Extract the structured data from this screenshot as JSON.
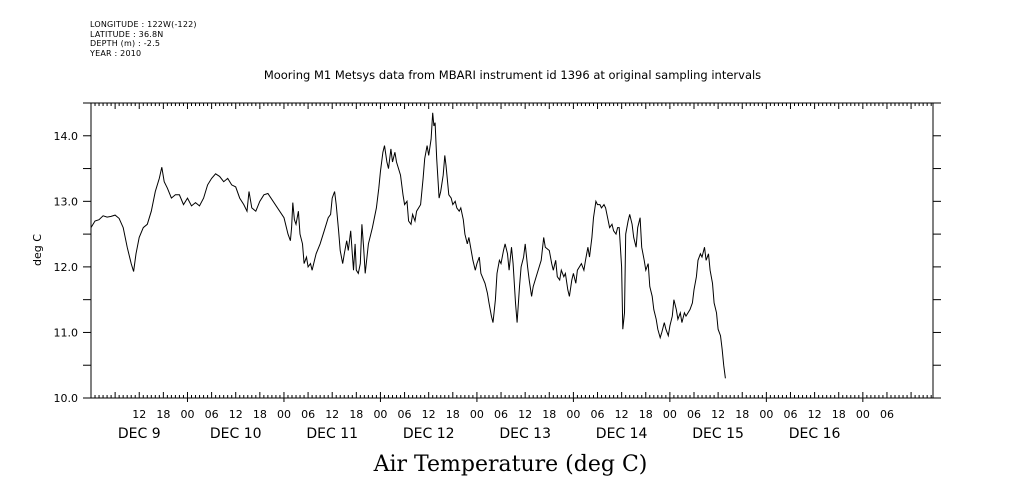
{
  "header": {
    "longitude": "LONGITUDE : 122W(-122)",
    "latitude": "LATITUDE : 36.8N",
    "depth": "DEPTH (m) : -2.5",
    "year": "YEAR : 2010"
  },
  "chart_data": {
    "type": "line",
    "title": "Mooring M1 Metsys data from MBARI instrument id 1396 at original sampling intervals",
    "bottom_title": "Air Temperature (deg C)",
    "ylabel": "deg C",
    "xlabel": "",
    "ylim": [
      10.0,
      14.5
    ],
    "y_ticks": [
      "10.0",
      "11.0",
      "12.0",
      "13.0",
      "14.0"
    ],
    "x_range_hours": [
      0,
      210
    ],
    "x_hour_labels": [
      {
        "h": 12,
        "label": "12"
      },
      {
        "h": 18,
        "label": "18"
      },
      {
        "h": 24,
        "label": "00"
      },
      {
        "h": 30,
        "label": "06"
      },
      {
        "h": 36,
        "label": "12"
      },
      {
        "h": 42,
        "label": "18"
      },
      {
        "h": 48,
        "label": "00"
      },
      {
        "h": 54,
        "label": "06"
      },
      {
        "h": 60,
        "label": "12"
      },
      {
        "h": 66,
        "label": "18"
      },
      {
        "h": 72,
        "label": "00"
      },
      {
        "h": 78,
        "label": "06"
      },
      {
        "h": 84,
        "label": "12"
      },
      {
        "h": 90,
        "label": "18"
      },
      {
        "h": 96,
        "label": "00"
      },
      {
        "h": 102,
        "label": "06"
      },
      {
        "h": 108,
        "label": "12"
      },
      {
        "h": 114,
        "label": "18"
      },
      {
        "h": 120,
        "label": "00"
      },
      {
        "h": 126,
        "label": "06"
      },
      {
        "h": 132,
        "label": "12"
      },
      {
        "h": 138,
        "label": "18"
      },
      {
        "h": 144,
        "label": "00"
      },
      {
        "h": 150,
        "label": "06"
      },
      {
        "h": 156,
        "label": "12"
      },
      {
        "h": 162,
        "label": "18"
      },
      {
        "h": 168,
        "label": "00"
      },
      {
        "h": 174,
        "label": "06"
      },
      {
        "h": 180,
        "label": "12"
      },
      {
        "h": 186,
        "label": "18"
      },
      {
        "h": 192,
        "label": "00"
      },
      {
        "h": 198,
        "label": "06"
      }
    ],
    "x_day_labels": [
      {
        "h": 12,
        "label": "DEC  9"
      },
      {
        "h": 36,
        "label": "DEC 10"
      },
      {
        "h": 60,
        "label": "DEC 11"
      },
      {
        "h": 84,
        "label": "DEC 12"
      },
      {
        "h": 108,
        "label": "DEC 13"
      },
      {
        "h": 132,
        "label": "DEC 14"
      },
      {
        "h": 156,
        "label": "DEC 15"
      },
      {
        "h": 180,
        "label": "DEC 16"
      }
    ],
    "series": [
      {
        "points": [
          [
            0,
            12.6
          ],
          [
            1,
            12.7
          ],
          [
            2,
            12.72
          ],
          [
            3,
            12.78
          ],
          [
            4,
            12.76
          ],
          [
            5,
            12.77
          ],
          [
            6,
            12.79
          ],
          [
            7,
            12.74
          ],
          [
            8,
            12.6
          ],
          [
            9,
            12.3
          ],
          [
            10,
            12.05
          ],
          [
            10.6,
            11.93
          ],
          [
            11.2,
            12.2
          ],
          [
            12,
            12.45
          ],
          [
            13,
            12.6
          ],
          [
            14,
            12.65
          ],
          [
            15,
            12.85
          ],
          [
            16,
            13.15
          ],
          [
            17,
            13.35
          ],
          [
            17.6,
            13.52
          ],
          [
            18.2,
            13.3
          ],
          [
            19,
            13.2
          ],
          [
            20,
            13.05
          ],
          [
            21,
            13.1
          ],
          [
            22,
            13.1
          ],
          [
            23,
            12.95
          ],
          [
            24,
            13.05
          ],
          [
            25,
            12.93
          ],
          [
            26,
            12.98
          ],
          [
            27,
            12.93
          ],
          [
            28,
            13.05
          ],
          [
            29,
            13.25
          ],
          [
            30,
            13.35
          ],
          [
            31,
            13.42
          ],
          [
            32,
            13.38
          ],
          [
            33,
            13.3
          ],
          [
            34,
            13.35
          ],
          [
            35,
            13.25
          ],
          [
            36,
            13.22
          ],
          [
            37,
            13.05
          ],
          [
            38,
            12.95
          ],
          [
            38.8,
            12.85
          ],
          [
            39.3,
            13.15
          ],
          [
            40,
            12.9
          ],
          [
            41,
            12.85
          ],
          [
            42,
            13.0
          ],
          [
            43,
            13.1
          ],
          [
            44,
            13.12
          ],
          [
            48,
            12.75
          ],
          [
            49,
            12.5
          ],
          [
            49.6,
            12.4
          ],
          [
            49.9,
            12.6
          ],
          [
            50.2,
            12.98
          ],
          [
            50.6,
            12.72
          ],
          [
            51,
            12.65
          ],
          [
            51.6,
            12.85
          ],
          [
            52,
            12.5
          ],
          [
            52.6,
            12.35
          ],
          [
            53,
            12.05
          ],
          [
            53.6,
            12.15
          ],
          [
            54,
            12.0
          ],
          [
            54.6,
            12.05
          ],
          [
            55,
            11.95
          ],
          [
            55.6,
            12.1
          ],
          [
            56,
            12.2
          ],
          [
            57,
            12.35
          ],
          [
            58,
            12.55
          ],
          [
            59,
            12.75
          ],
          [
            59.6,
            12.8
          ],
          [
            60,
            13.05
          ],
          [
            60.6,
            13.15
          ],
          [
            61,
            12.95
          ],
          [
            61.6,
            12.55
          ],
          [
            62,
            12.25
          ],
          [
            62.6,
            12.05
          ],
          [
            63,
            12.2
          ],
          [
            63.6,
            12.4
          ],
          [
            64,
            12.25
          ],
          [
            64.6,
            12.55
          ],
          [
            65,
            12.2
          ],
          [
            65.3,
            11.95
          ],
          [
            65.7,
            12.35
          ],
          [
            66,
            11.95
          ],
          [
            66.5,
            11.9
          ],
          [
            67,
            12.05
          ],
          [
            67.4,
            12.65
          ],
          [
            67.8,
            12.3
          ],
          [
            68.2,
            11.9
          ],
          [
            69,
            12.35
          ],
          [
            70,
            12.6
          ],
          [
            71,
            12.9
          ],
          [
            71.6,
            13.2
          ],
          [
            72,
            13.45
          ],
          [
            72.6,
            13.75
          ],
          [
            73,
            13.85
          ],
          [
            73.6,
            13.6
          ],
          [
            74,
            13.5
          ],
          [
            74.6,
            13.8
          ],
          [
            75,
            13.6
          ],
          [
            75.6,
            13.75
          ],
          [
            76,
            13.6
          ],
          [
            77,
            13.4
          ],
          [
            77.6,
            13.1
          ],
          [
            78,
            12.95
          ],
          [
            78.6,
            13.0
          ],
          [
            79,
            12.7
          ],
          [
            79.6,
            12.65
          ],
          [
            80,
            12.8
          ],
          [
            80.6,
            12.7
          ],
          [
            81,
            12.85
          ],
          [
            82,
            12.95
          ],
          [
            82.6,
            13.35
          ],
          [
            83,
            13.65
          ],
          [
            83.6,
            13.85
          ],
          [
            84,
            13.7
          ],
          [
            84.6,
            13.95
          ],
          [
            85,
            14.35
          ],
          [
            85.3,
            14.15
          ],
          [
            85.6,
            14.2
          ],
          [
            86,
            13.65
          ],
          [
            86.6,
            13.05
          ],
          [
            87,
            13.15
          ],
          [
            87.6,
            13.4
          ],
          [
            88,
            13.7
          ],
          [
            88.3,
            13.55
          ],
          [
            89,
            13.1
          ],
          [
            89.6,
            13.05
          ],
          [
            90,
            12.95
          ],
          [
            90.6,
            13.0
          ],
          [
            91,
            12.9
          ],
          [
            91.6,
            12.85
          ],
          [
            92,
            12.9
          ],
          [
            92.6,
            12.72
          ],
          [
            93,
            12.5
          ],
          [
            93.6,
            12.35
          ],
          [
            94,
            12.45
          ],
          [
            95,
            12.1
          ],
          [
            95.6,
            11.95
          ],
          [
            96,
            12.05
          ],
          [
            96.6,
            12.15
          ],
          [
            97,
            11.9
          ],
          [
            98,
            11.75
          ],
          [
            98.6,
            11.6
          ],
          [
            99,
            11.45
          ],
          [
            99.6,
            11.25
          ],
          [
            100,
            11.15
          ],
          [
            100.6,
            11.5
          ],
          [
            101,
            11.9
          ],
          [
            101.6,
            12.1
          ],
          [
            102,
            12.05
          ],
          [
            102.6,
            12.25
          ],
          [
            103,
            12.35
          ],
          [
            103.6,
            12.2
          ],
          [
            104,
            11.95
          ],
          [
            104.6,
            12.3
          ],
          [
            105,
            12.05
          ],
          [
            105.6,
            11.45
          ],
          [
            106,
            11.15
          ],
          [
            106.6,
            11.7
          ],
          [
            107,
            12.0
          ],
          [
            107.6,
            12.15
          ],
          [
            108,
            12.35
          ],
          [
            108.6,
            12.0
          ],
          [
            109,
            11.8
          ],
          [
            109.6,
            11.55
          ],
          [
            110,
            11.7
          ],
          [
            111,
            11.9
          ],
          [
            112,
            12.1
          ],
          [
            112.6,
            12.45
          ],
          [
            113,
            12.3
          ],
          [
            114,
            12.25
          ],
          [
            114.6,
            12.05
          ],
          [
            115,
            11.95
          ],
          [
            115.6,
            12.1
          ],
          [
            116,
            11.85
          ],
          [
            116.6,
            11.8
          ],
          [
            117,
            11.95
          ],
          [
            117.6,
            11.85
          ],
          [
            118,
            11.9
          ],
          [
            118.6,
            11.65
          ],
          [
            119,
            11.55
          ],
          [
            119.6,
            11.8
          ],
          [
            120,
            11.9
          ],
          [
            120.6,
            11.75
          ],
          [
            121,
            11.95
          ],
          [
            122,
            12.05
          ],
          [
            122.6,
            11.95
          ],
          [
            123,
            12.1
          ],
          [
            123.6,
            12.3
          ],
          [
            124,
            12.15
          ],
          [
            124.6,
            12.45
          ],
          [
            125,
            12.75
          ],
          [
            125.6,
            13.0
          ],
          [
            126,
            12.95
          ],
          [
            126.6,
            12.95
          ],
          [
            127,
            12.9
          ],
          [
            127.6,
            12.95
          ],
          [
            128,
            12.9
          ],
          [
            128.6,
            12.72
          ],
          [
            129,
            12.6
          ],
          [
            129.6,
            12.65
          ],
          [
            130,
            12.55
          ],
          [
            130.6,
            12.5
          ],
          [
            131,
            12.6
          ],
          [
            131.4,
            12.6
          ],
          [
            132,
            12.0
          ],
          [
            132.3,
            11.05
          ],
          [
            132.7,
            11.3
          ],
          [
            133,
            12.5
          ],
          [
            133.6,
            12.7
          ],
          [
            134,
            12.8
          ],
          [
            134.6,
            12.65
          ],
          [
            135,
            12.45
          ],
          [
            135.6,
            12.3
          ],
          [
            136,
            12.6
          ],
          [
            136.6,
            12.75
          ],
          [
            137,
            12.3
          ],
          [
            137.6,
            12.1
          ],
          [
            138,
            11.95
          ],
          [
            138.6,
            12.05
          ],
          [
            139,
            11.7
          ],
          [
            139.6,
            11.55
          ],
          [
            140,
            11.35
          ],
          [
            140.6,
            11.2
          ],
          [
            141,
            11.05
          ],
          [
            141.6,
            10.92
          ],
          [
            142,
            11.0
          ],
          [
            142.6,
            11.15
          ],
          [
            143,
            11.05
          ],
          [
            143.6,
            10.95
          ],
          [
            144,
            11.1
          ],
          [
            144.6,
            11.25
          ],
          [
            145,
            11.5
          ],
          [
            145.6,
            11.35
          ],
          [
            146,
            11.2
          ],
          [
            146.6,
            11.3
          ],
          [
            147,
            11.15
          ],
          [
            147.6,
            11.3
          ],
          [
            148,
            11.25
          ],
          [
            149,
            11.35
          ],
          [
            149.6,
            11.45
          ],
          [
            150,
            11.65
          ],
          [
            150.6,
            11.85
          ],
          [
            151,
            12.1
          ],
          [
            151.6,
            12.2
          ],
          [
            152,
            12.15
          ],
          [
            152.6,
            12.3
          ],
          [
            153,
            12.1
          ],
          [
            153.6,
            12.2
          ],
          [
            154,
            11.95
          ],
          [
            154.6,
            11.75
          ],
          [
            155,
            11.45
          ],
          [
            155.6,
            11.3
          ],
          [
            156,
            11.05
          ],
          [
            156.6,
            10.95
          ],
          [
            157,
            10.75
          ],
          [
            157.4,
            10.5
          ],
          [
            157.8,
            10.3
          ]
        ]
      }
    ]
  }
}
